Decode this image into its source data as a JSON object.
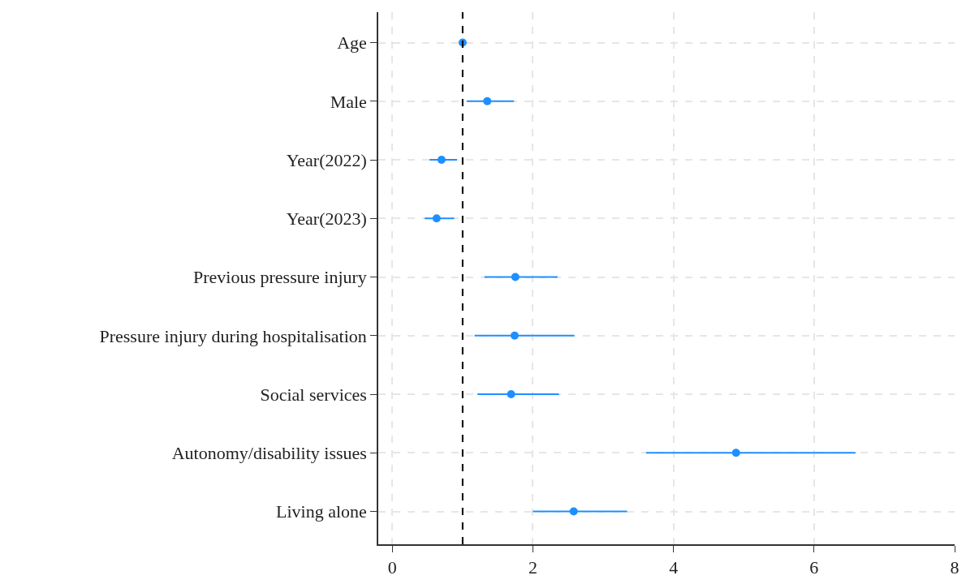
{
  "chart_data": {
    "type": "scatter",
    "orientation": "horizontal",
    "categories": [
      "Age",
      "Male",
      "Year(2022)",
      "Year(2023)",
      "Previous pressure injury",
      "Pressure injury during hospitalisation",
      "Social services",
      "Autonomy/disability issues",
      "Living alone"
    ],
    "values": [
      1.0,
      1.35,
      0.7,
      0.63,
      1.75,
      1.74,
      1.69,
      4.89,
      2.58
    ],
    "errors": [
      null,
      [
        1.06,
        1.73
      ],
      [
        0.53,
        0.92
      ],
      [
        0.46,
        0.88
      ],
      [
        1.31,
        2.35
      ],
      [
        1.17,
        2.59
      ],
      [
        1.21,
        2.37
      ],
      [
        3.61,
        6.59
      ],
      [
        2.0,
        3.34
      ]
    ],
    "color": "#1e8fff",
    "marker": "circle",
    "xlim": [
      -0.2,
      8.0
    ],
    "xticks": [
      0,
      2,
      4,
      6,
      8
    ],
    "grid": true,
    "ref_lines": [
      {
        "axis": "x",
        "value": 1,
        "color": "#000000",
        "line_style": "dashed"
      }
    ]
  }
}
